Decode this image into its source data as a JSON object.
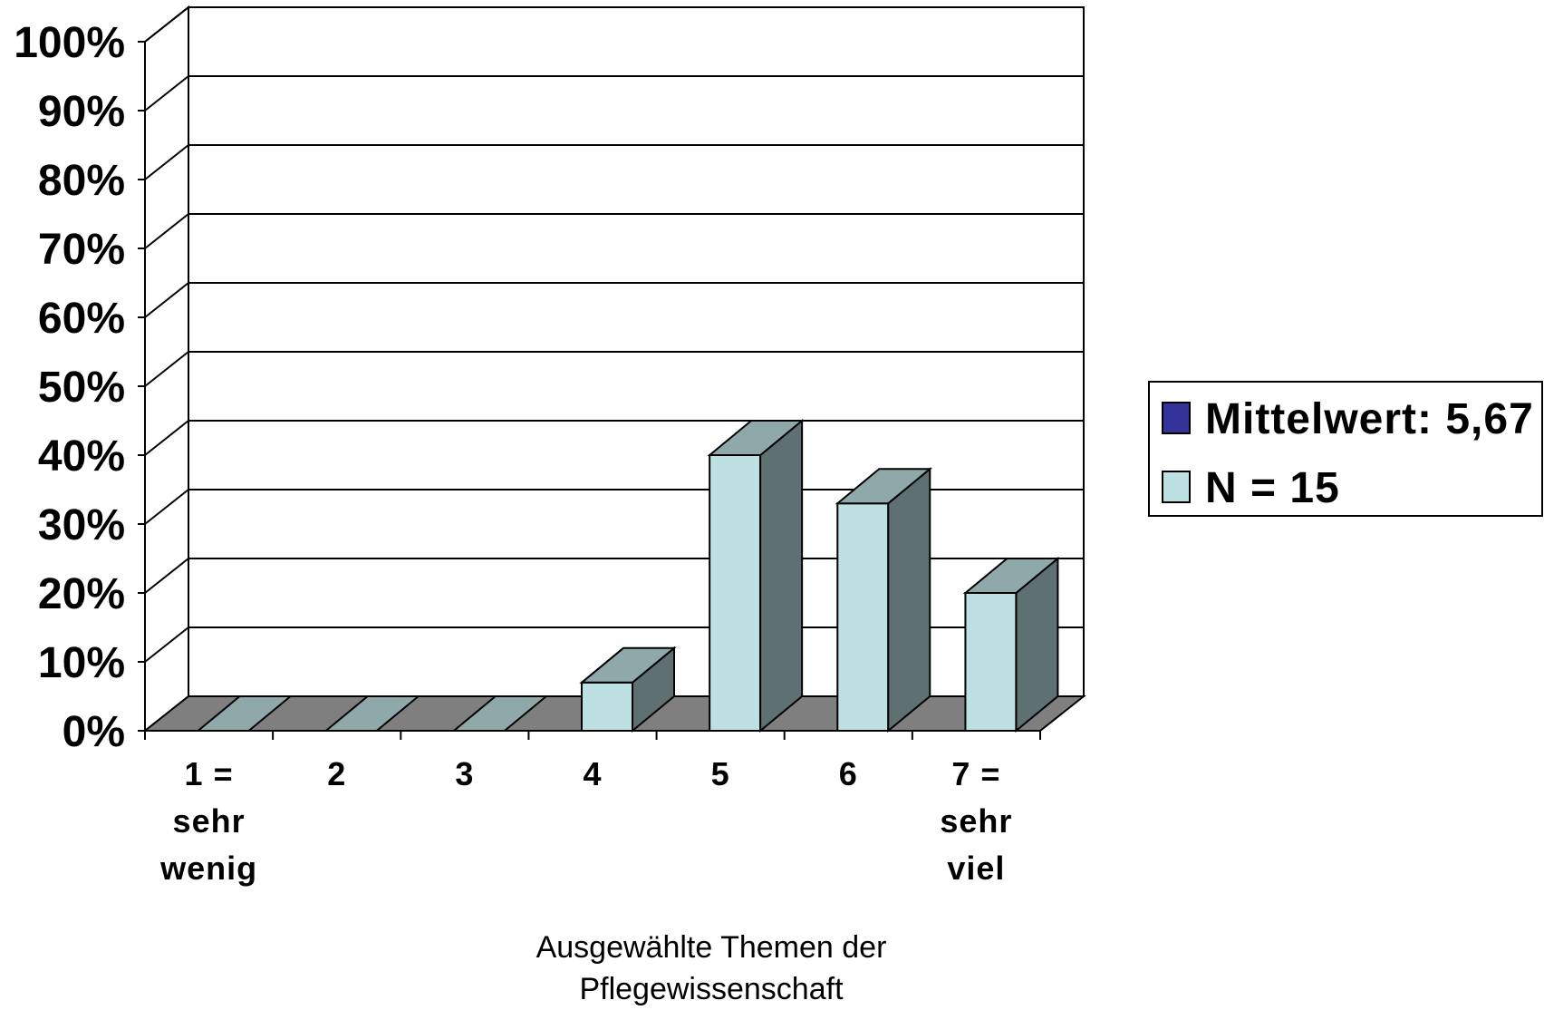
{
  "chart_data": {
    "type": "bar",
    "categories": [
      [
        "1 =",
        "sehr",
        "wenig"
      ],
      [
        "2"
      ],
      [
        "3"
      ],
      [
        "4"
      ],
      [
        "5"
      ],
      [
        "6"
      ],
      [
        "7 =",
        "sehr",
        "viel"
      ]
    ],
    "values": [
      0,
      0,
      0,
      7,
      40,
      33,
      20
    ],
    "ylim": [
      0,
      100
    ],
    "y_ticks": [
      "0%",
      "10%",
      "20%",
      "30%",
      "40%",
      "50%",
      "60%",
      "70%",
      "80%",
      "90%",
      "100%"
    ],
    "xlabel": [
      "Ausgewählte Themen der",
      "Pflegewissenschaft"
    ],
    "ylabel": "",
    "grid": true,
    "three_d": true,
    "legend": {
      "placement": "right",
      "entries": [
        {
          "label": "Mittelwert: 5,67",
          "color": "#333399"
        },
        {
          "label": "N = 15",
          "color": "#bde0e3"
        }
      ]
    },
    "colors": {
      "bar_front": "#bde0e3",
      "bar_top": "#8fa9ab",
      "bar_side": "#5f7072",
      "floor": "#7f7f7f",
      "zero_bar": "#8fa9ab"
    }
  }
}
